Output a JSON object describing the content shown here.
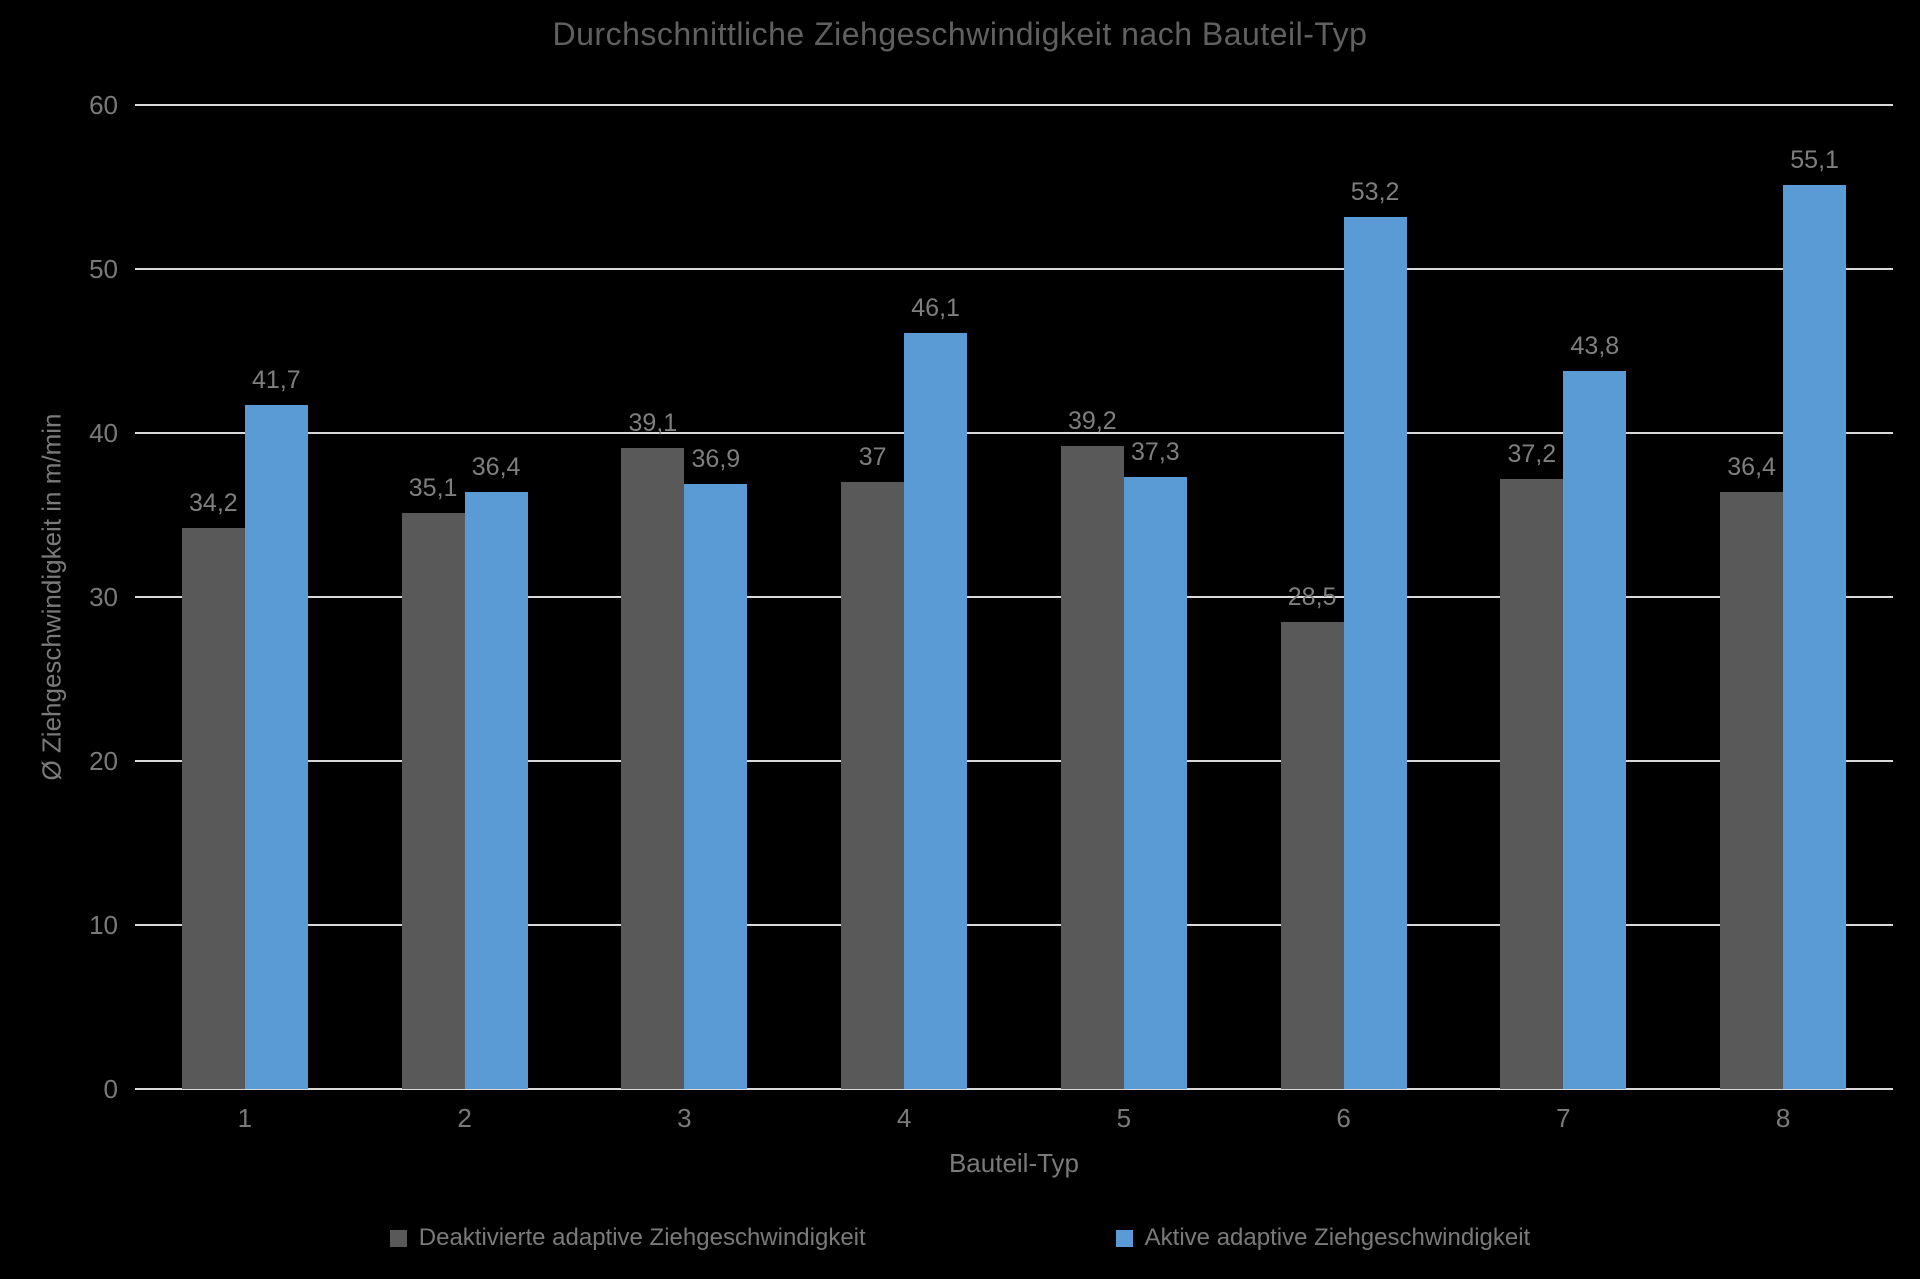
{
  "chart_data": {
    "type": "bar",
    "title": "Durchschnittliche Ziehgeschwindigkeit nach Bauteil-Typ",
    "xlabel": "Bauteil-Typ",
    "ylabel": "Ø Ziehgeschwindigkeit in m/min",
    "categories": [
      "1",
      "2",
      "3",
      "4",
      "5",
      "6",
      "7",
      "8"
    ],
    "series": [
      {
        "name": "Deaktivierte adaptive Ziehgeschwindigkeit",
        "color": "#595959",
        "values": [
          34.2,
          35.1,
          39.1,
          37,
          39.2,
          28.5,
          37.2,
          36.4
        ],
        "labels": [
          "34,2",
          "35,1",
          "39,1",
          "37",
          "39,2",
          "28,5",
          "37,2",
          "36,4"
        ]
      },
      {
        "name": "Aktive adaptive Ziehgeschwindigkeit",
        "color": "#5B9BD5",
        "values": [
          41.7,
          36.4,
          36.9,
          46.1,
          37.3,
          53.2,
          43.8,
          55.1
        ],
        "labels": [
          "41,7",
          "36,4",
          "36,9",
          "46,1",
          "37,3",
          "53,2",
          "43,8",
          "55,1"
        ]
      }
    ],
    "ylim": [
      0,
      60
    ],
    "yticks": [
      0,
      10,
      20,
      30,
      40,
      50,
      60
    ],
    "grid": true,
    "legend_position": "bottom",
    "colors": {
      "background": "#000000",
      "gridline": "#D9D9D9",
      "title_text": "#606060",
      "axis_text": "#7A7A7A",
      "data_label_text": "#7F7F7F",
      "legend_text": "#7A7A7A"
    }
  }
}
